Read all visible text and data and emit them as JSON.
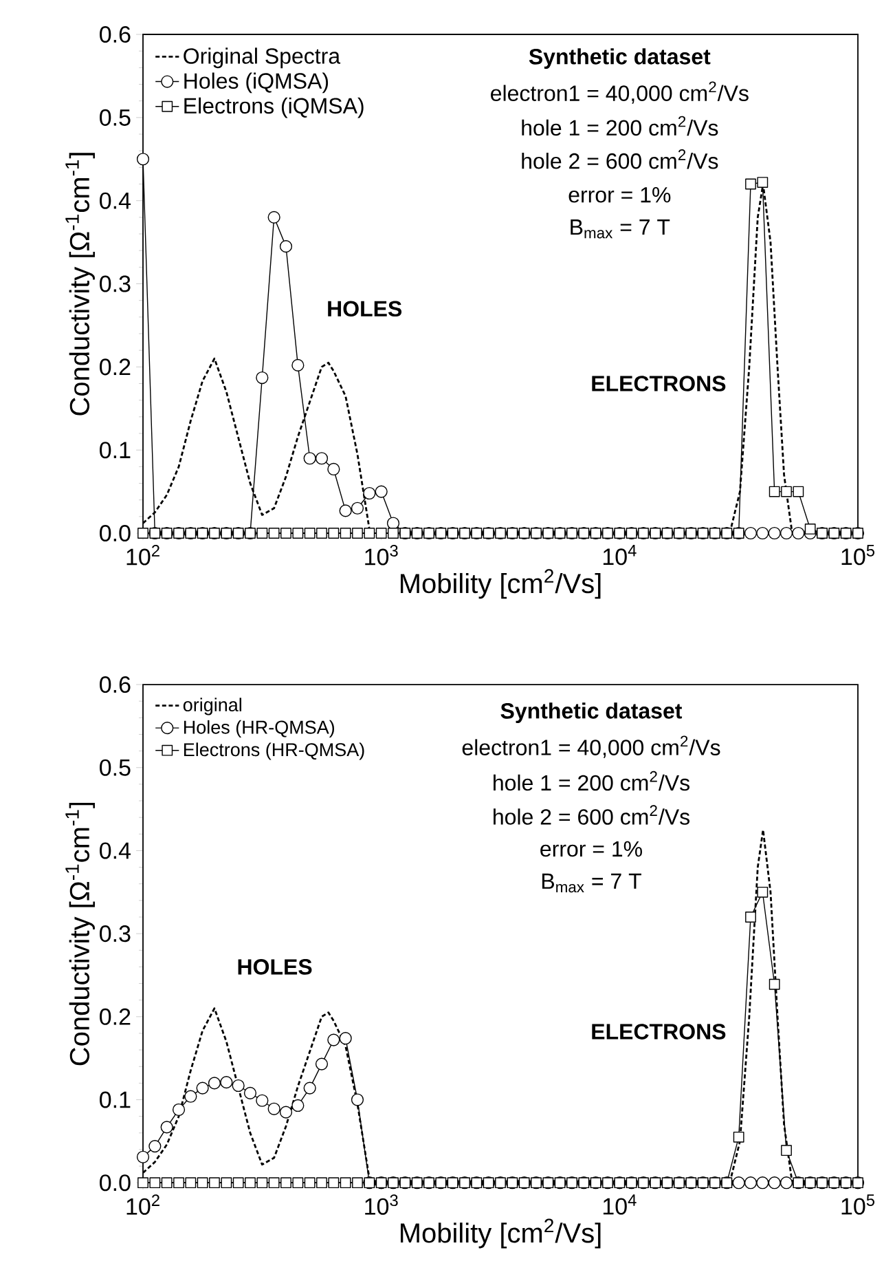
{
  "chart_data": [
    {
      "type": "line",
      "xlabel": "Mobility [cm$^{2}$/Vs]",
      "ylabel": "Conductivity [Ω$^{-1}$cm$^{-1}$]",
      "log": "x",
      "xlim": [
        100,
        100000
      ],
      "ylim": [
        0,
        0.6
      ],
      "xticks": [
        {
          "value": 100,
          "label": "10$^{2}$"
        },
        {
          "value": 1000,
          "label": "10$^{3}$"
        },
        {
          "value": 10000,
          "label": "10$^{4}$"
        },
        {
          "value": 100000,
          "label": "10$^{5}$"
        }
      ],
      "yticks": [
        {
          "value": 0,
          "label": "0.0"
        },
        0.1,
        0.2,
        0.3,
        0.4,
        0.5,
        0.6
      ],
      "legend": "top left",
      "x": [
        100,
        112.2,
        125.9,
        141.3,
        158.5,
        177.8,
        199.5,
        223.9,
        251.2,
        281.8,
        316.2,
        354.8,
        398.1,
        446.7,
        501.2,
        562.3,
        631,
        707.9,
        794.3,
        891.3,
        1000,
        1122,
        1259,
        1413,
        1585,
        1778,
        1995,
        2239,
        2512,
        2818,
        3162,
        3548,
        3981,
        4467,
        5012,
        5623,
        6310,
        7079,
        7943,
        8913,
        10000,
        11220,
        12589,
        14125,
        15849,
        17783,
        19953,
        22387,
        25119,
        28184,
        31623,
        35481,
        39811,
        44668,
        50119,
        56234,
        63096,
        70795,
        79433,
        89125,
        100000
      ],
      "series": [
        {
          "name": "Original Spectra",
          "color": "#000000",
          "line_style": "dashed",
          "marker": "none",
          "x": [
            100,
            112.2,
            125.9,
            141.3,
            158.5,
            177.8,
            199.5,
            223.9,
            251.2,
            281.8,
            316.2,
            354.8,
            398.1,
            446.7,
            501.2,
            562.3,
            600,
            631,
            707.9,
            794.3,
            891.3,
            5000,
            29000,
            32000,
            35000,
            38000,
            40000,
            43000,
            46000,
            49000,
            53000
          ],
          "values": [
            0.012,
            0.025,
            0.046,
            0.08,
            0.135,
            0.183,
            0.21,
            0.17,
            0.115,
            0.06,
            0.022,
            0.03,
            0.068,
            0.116,
            0.158,
            0.2,
            0.205,
            0.195,
            0.165,
            0.095,
            0.005,
            null,
            0,
            0.05,
            0.2,
            0.38,
            0.42,
            0.35,
            0.2,
            0.07,
            0
          ]
        },
        {
          "name": "Holes (iQMSA)",
          "color": "#000000",
          "line_style": "solid",
          "marker": "circle",
          "values": [
            0.45,
            0,
            0,
            0,
            0,
            0,
            0,
            0,
            0,
            0,
            0.187,
            0.38,
            0.345,
            0.202,
            0.09,
            0.09,
            0.077,
            0.027,
            0.03,
            0.048,
            0.05,
            0.012,
            0,
            0,
            0,
            0,
            0,
            0,
            0,
            0,
            0,
            0,
            0,
            0,
            0,
            0,
            0,
            0,
            0,
            0,
            0,
            0,
            0,
            0,
            0,
            0,
            0,
            0,
            0,
            0,
            0,
            0,
            0,
            0,
            0,
            0,
            0,
            0,
            0,
            0,
            0
          ]
        },
        {
          "name": "Electrons (iQMSA)",
          "color": "#000000",
          "line_style": "solid",
          "marker": "square",
          "values": [
            0,
            0,
            0,
            0,
            0,
            0,
            0,
            0,
            0,
            0,
            0,
            0,
            0,
            0,
            0,
            0,
            0,
            0,
            0,
            0,
            0,
            0,
            0,
            0,
            0,
            0,
            0,
            0,
            0,
            0,
            0,
            0,
            0,
            0,
            0,
            0,
            0,
            0,
            0,
            0,
            0,
            0,
            0,
            0,
            0,
            0,
            0,
            0,
            0,
            0,
            0,
            0.42,
            0.422,
            0.05,
            0.05,
            0.05,
            0.005,
            0,
            0,
            0,
            0
          ]
        }
      ],
      "annotations": [
        "Synthetic dataset",
        "electron1 = 40,000 cm$^{2}$/Vs",
        "hole 1 = 200 cm$^{2}$/Vs",
        "hole 2 = 600 cm$^{2}$/Vs",
        "error  = 1%",
        "B$_{max}$  = 7 T",
        "HOLES",
        "ELECTRONS"
      ]
    },
    {
      "type": "line",
      "xlabel": "Mobility [cm$^{2}$/Vs]",
      "ylabel": "Conductivity [Ω$^{-1}$cm$^{-1}$]",
      "log": "x",
      "xlim": [
        100,
        100000
      ],
      "ylim": [
        0,
        0.6
      ],
      "xticks": [
        {
          "value": 100,
          "label": "10$^{2}$"
        },
        {
          "value": 1000,
          "label": "10$^{3}$"
        },
        {
          "value": 10000,
          "label": "10$^{4}$"
        },
        {
          "value": 100000,
          "label": "10$^{5}$"
        }
      ],
      "yticks": [
        {
          "value": 0,
          "label": "0.0"
        },
        0.1,
        0.2,
        0.3,
        0.4,
        0.5,
        0.6
      ],
      "legend": "top left",
      "x": [
        100,
        112.2,
        125.9,
        141.3,
        158.5,
        177.8,
        199.5,
        223.9,
        251.2,
        281.8,
        316.2,
        354.8,
        398.1,
        446.7,
        501.2,
        562.3,
        631,
        707.9,
        794.3,
        891.3,
        1000,
        1122,
        1259,
        1413,
        1585,
        1778,
        1995,
        2239,
        2512,
        2818,
        3162,
        3548,
        3981,
        4467,
        5012,
        5623,
        6310,
        7079,
        7943,
        8913,
        10000,
        11220,
        12589,
        14125,
        15849,
        17783,
        19953,
        22387,
        25119,
        28184,
        31623,
        35481,
        39811,
        44668,
        50119,
        56234,
        63096,
        70795,
        79433,
        89125,
        100000
      ],
      "series": [
        {
          "name": "original",
          "color": "#000000",
          "line_style": "dashed",
          "marker": "none",
          "x": [
            100,
            112.2,
            125.9,
            141.3,
            158.5,
            177.8,
            199.5,
            223.9,
            251.2,
            281.8,
            316.2,
            354.8,
            398.1,
            446.7,
            501.2,
            562.3,
            600,
            631,
            707.9,
            794.3,
            891.3,
            5000,
            29000,
            32000,
            35000,
            38000,
            40000,
            43000,
            46000,
            49000,
            53000
          ],
          "values": [
            0.012,
            0.025,
            0.046,
            0.08,
            0.135,
            0.183,
            0.21,
            0.17,
            0.115,
            0.06,
            0.022,
            0.03,
            0.068,
            0.116,
            0.158,
            0.2,
            0.205,
            0.195,
            0.165,
            0.095,
            0.005,
            null,
            0,
            0.05,
            0.2,
            0.38,
            0.425,
            0.35,
            0.2,
            0.07,
            0
          ]
        },
        {
          "name": "Holes (HR-QMSA)",
          "color": "#000000",
          "line_style": "solid",
          "marker": "circle",
          "values": [
            0.031,
            0.044,
            0.067,
            0.088,
            0.104,
            0.114,
            0.12,
            0.121,
            0.117,
            0.108,
            0.099,
            0.089,
            0.085,
            0.093,
            0.114,
            0.143,
            0.172,
            0.174,
            0.1,
            0,
            0,
            0,
            0,
            0,
            0,
            0,
            0,
            0,
            0,
            0,
            0,
            0,
            0,
            0,
            0,
            0,
            0,
            0,
            0,
            0,
            0,
            0,
            0,
            0,
            0,
            0,
            0,
            0,
            0,
            0,
            0,
            0,
            0,
            0,
            0,
            0,
            0,
            0,
            0,
            0,
            0
          ]
        },
        {
          "name": "Electrons (HR-QMSA)",
          "color": "#000000",
          "line_style": "solid",
          "marker": "square",
          "values": [
            0,
            0,
            0,
            0,
            0,
            0,
            0,
            0,
            0,
            0,
            0,
            0,
            0,
            0,
            0,
            0,
            0,
            0,
            0,
            0,
            0,
            0,
            0,
            0,
            0,
            0,
            0,
            0,
            0,
            0,
            0,
            0,
            0,
            0,
            0,
            0,
            0,
            0,
            0,
            0,
            0,
            0,
            0,
            0,
            0,
            0,
            0,
            0,
            0,
            0,
            0.055,
            0.32,
            0.35,
            0.239,
            0.039,
            0,
            0,
            0,
            0,
            0,
            0
          ]
        }
      ],
      "annotations": [
        "Synthetic dataset",
        "electron1 = 40,000 cm$^{2}$/Vs",
        "hole 1 = 200 cm$^{2}$/Vs",
        "hole 2 = 600 cm$^{2}$/Vs",
        "error  = 1%",
        "B$_{max}$  = 7 T",
        "HOLES",
        "ELECTRONS"
      ]
    }
  ]
}
